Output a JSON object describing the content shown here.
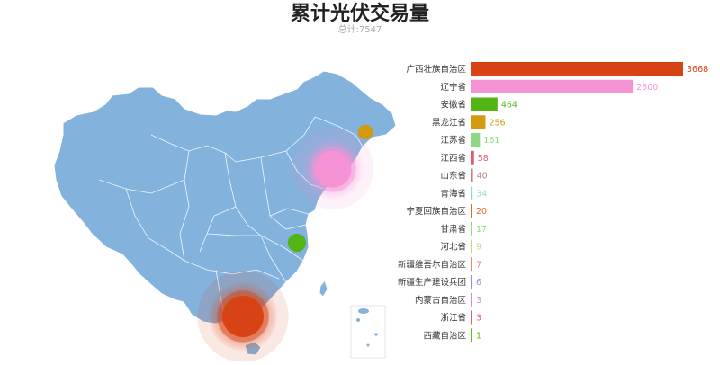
{
  "chart_data": {
    "type": "bar",
    "title": "累计光伏交易量",
    "subtitle": "总计:7547",
    "categories": [
      "广西壮族自治区",
      "辽宁省",
      "安徽省",
      "黑龙江省",
      "江苏省",
      "江西省",
      "山东省",
      "青海省",
      "宁夏回族自治区",
      "甘肃省",
      "河北省",
      "新疆维吾尔自治区",
      "新疆生产建设兵团",
      "内蒙古自治区",
      "浙江省",
      "西藏自治区"
    ],
    "values": [
      3668,
      2800,
      464,
      256,
      161,
      58,
      40,
      34,
      20,
      17,
      9,
      7,
      6,
      3,
      3,
      1
    ],
    "colors": [
      "#d84315",
      "#f593d5",
      "#52b515",
      "#d49a0d",
      "#8fd884",
      "#e8566f",
      "#b8877d",
      "#8fd8cf",
      "#e06c1e",
      "#8fd884",
      "#c9d48b",
      "#e8866f",
      "#9a8fd8",
      "#c98fd8",
      "#e8567f",
      "#52c515"
    ],
    "xlim": [
      0,
      3668
    ],
    "map_bubbles": [
      {
        "province": "广西壮族自治区",
        "value": 3668
      },
      {
        "province": "辽宁省",
        "value": 2800
      },
      {
        "province": "安徽省",
        "value": 464
      },
      {
        "province": "黑龙江省",
        "value": 256
      }
    ],
    "map_color": "#83b2dc"
  }
}
